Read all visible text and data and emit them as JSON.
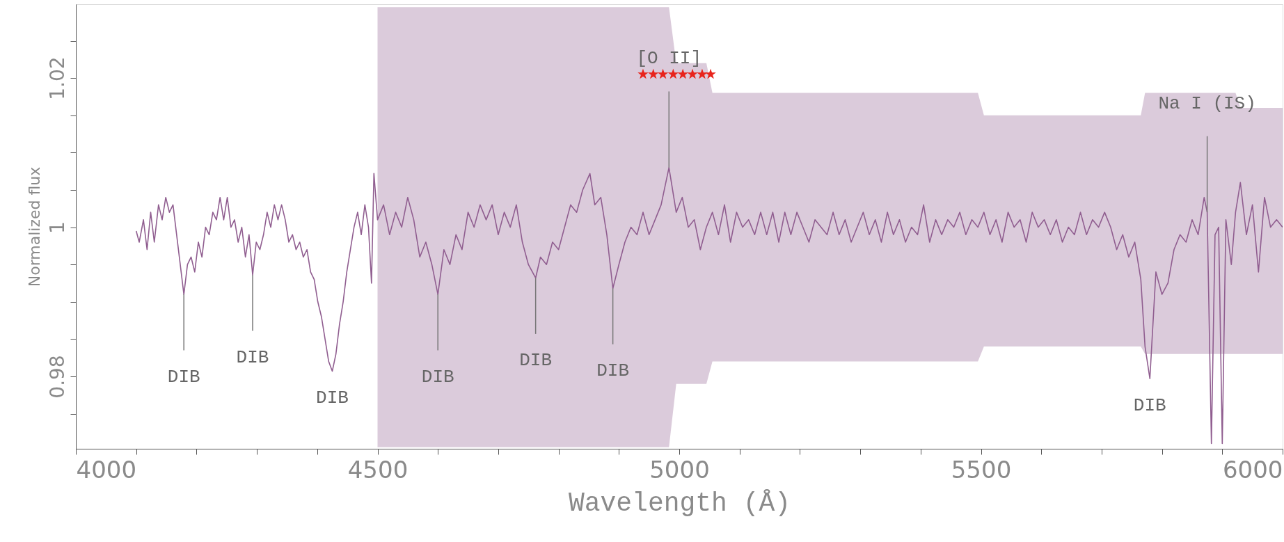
{
  "chart_data": {
    "type": "line",
    "xlabel": "Wavelength (Å)",
    "ylabel": "Normalized flux",
    "xlim": [
      4000,
      6000
    ],
    "ylim": [
      0.9703,
      1.0299
    ],
    "xticks": [
      4000,
      {
        "value": 4100,
        "label": null
      },
      {
        "value": 4200,
        "label": null
      },
      {
        "value": 4300,
        "label": null
      },
      {
        "value": 4400,
        "label": null
      },
      4500,
      {
        "value": 4600,
        "label": null
      },
      {
        "value": 4700,
        "label": null
      },
      {
        "value": 4800,
        "label": null
      },
      {
        "value": 4900,
        "label": null
      },
      5000,
      {
        "value": 5100,
        "label": null
      },
      {
        "value": 5200,
        "label": null
      },
      {
        "value": 5300,
        "label": null
      },
      {
        "value": 5400,
        "label": null
      },
      5500,
      {
        "value": 5600,
        "label": null
      },
      {
        "value": 5700,
        "label": null
      },
      {
        "value": 5800,
        "label": null
      },
      {
        "value": 5900,
        "label": null
      },
      6000
    ],
    "yticks": [
      {
        "value": 0.975,
        "label": null
      },
      0.98,
      {
        "value": 0.985,
        "label": null
      },
      {
        "value": 0.99,
        "label": null
      },
      {
        "value": 0.995,
        "label": null
      },
      1,
      {
        "value": 1.005,
        "label": null
      },
      {
        "value": 1.01,
        "label": null
      },
      {
        "value": 1.015,
        "label": null
      },
      1.02,
      {
        "value": 1.025,
        "label": null
      }
    ],
    "series": [
      {
        "color": "#905e90",
        "x": [
          4100,
          4105,
          4112,
          4118,
          4124,
          4130,
          4137,
          4143,
          4149,
          4155,
          4161,
          4167,
          4173,
          4179,
          4185,
          4191,
          4197,
          4203,
          4209,
          4215,
          4221,
          4227,
          4233,
          4239,
          4245,
          4251,
          4257,
          4263,
          4269,
          4275,
          4281,
          4287,
          4293,
          4299,
          4305,
          4311,
          4317,
          4323,
          4329,
          4335,
          4341,
          4347,
          4353,
          4359,
          4365,
          4371,
          4377,
          4383,
          4389,
          4395,
          4401,
          4407,
          4413,
          4419,
          4425,
          4431,
          4437,
          4443,
          4449,
          4455,
          4461,
          4467,
          4473,
          4479,
          4485,
          4490,
          4494,
          4500,
          4510,
          4520,
          4530,
          4540,
          4550,
          4560,
          4570,
          4580,
          4590,
          4600,
          4610,
          4620,
          4630,
          4640,
          4650,
          4660,
          4670,
          4680,
          4690,
          4700,
          4710,
          4720,
          4730,
          4740,
          4750,
          4762,
          4770,
          4780,
          4790,
          4800,
          4810,
          4820,
          4830,
          4840,
          4852,
          4860,
          4870,
          4880,
          4890,
          4900,
          4910,
          4920,
          4930,
          4940,
          4950,
          4960,
          4970,
          4983,
          4995,
          5005,
          5015,
          5025,
          5035,
          5045,
          5055,
          5065,
          5075,
          5085,
          5095,
          5105,
          5115,
          5125,
          5135,
          5145,
          5155,
          5165,
          5175,
          5185,
          5195,
          5205,
          5215,
          5225,
          5235,
          5245,
          5255,
          5265,
          5275,
          5285,
          5295,
          5305,
          5315,
          5325,
          5335,
          5345,
          5355,
          5365,
          5375,
          5385,
          5395,
          5405,
          5415,
          5425,
          5435,
          5445,
          5455,
          5465,
          5475,
          5485,
          5495,
          5505,
          5515,
          5525,
          5535,
          5545,
          5555,
          5565,
          5575,
          5585,
          5595,
          5605,
          5615,
          5625,
          5635,
          5645,
          5655,
          5665,
          5675,
          5685,
          5695,
          5705,
          5715,
          5725,
          5735,
          5745,
          5755,
          5765,
          5772,
          5780,
          5790,
          5800,
          5810,
          5820,
          5830,
          5840,
          5850,
          5860,
          5870,
          5875,
          5882,
          5888,
          5894,
          5900,
          5906,
          5915,
          5922,
          5930,
          5940,
          5950,
          5960,
          5970,
          5980,
          5990,
          6000
        ],
        "values": [
          0.9995,
          0.998,
          1.001,
          0.997,
          1.002,
          0.998,
          1.003,
          1.001,
          1.004,
          1.002,
          1.003,
          0.999,
          0.995,
          0.991,
          0.995,
          0.996,
          0.994,
          0.998,
          0.996,
          1.0,
          0.999,
          1.002,
          1.001,
          1.004,
          1.001,
          1.004,
          1.0,
          1.001,
          0.998,
          1.0,
          0.996,
          0.999,
          0.9936,
          0.998,
          0.997,
          0.999,
          1.002,
          1.0,
          1.003,
          1.001,
          1.003,
          1.001,
          0.998,
          0.999,
          0.997,
          0.998,
          0.996,
          0.997,
          0.994,
          0.993,
          0.99,
          0.988,
          0.985,
          0.982,
          0.9807,
          0.983,
          0.987,
          0.99,
          0.994,
          0.997,
          1.0,
          1.002,
          0.999,
          1.003,
          1.0,
          0.9925,
          1.0072,
          1.001,
          1.003,
          0.999,
          1.002,
          1.0,
          1.004,
          1.001,
          0.996,
          0.998,
          0.995,
          0.991,
          0.997,
          0.995,
          0.999,
          0.997,
          1.002,
          1.0,
          1.003,
          1.001,
          1.003,
          0.999,
          1.002,
          1.0,
          1.003,
          0.998,
          0.995,
          0.9932,
          0.996,
          0.995,
          0.998,
          0.997,
          1.0,
          1.003,
          1.002,
          1.005,
          1.0072,
          1.003,
          1.004,
          0.999,
          0.9918,
          0.995,
          0.998,
          1.0,
          0.999,
          1.002,
          0.999,
          1.001,
          1.003,
          1.008,
          1.002,
          1.004,
          1.0,
          1.001,
          0.997,
          1.0,
          1.002,
          0.999,
          1.003,
          0.998,
          1.002,
          1.0,
          1.001,
          0.999,
          1.002,
          0.999,
          1.002,
          0.998,
          1.002,
          0.999,
          1.002,
          1.0,
          0.998,
          1.001,
          1.0,
          0.999,
          1.002,
          0.999,
          1.001,
          0.998,
          1.0,
          1.002,
          0.999,
          1.001,
          0.998,
          1.002,
          0.999,
          1.001,
          0.998,
          1.0,
          0.999,
          1.003,
          0.998,
          1.001,
          0.999,
          1.001,
          1.0,
          1.002,
          0.999,
          1.001,
          1.0,
          1.002,
          0.999,
          1.001,
          0.998,
          1.002,
          1.0,
          1.001,
          0.998,
          1.002,
          1.0,
          1.001,
          0.999,
          1.001,
          0.998,
          1.0,
          0.999,
          1.002,
          0.999,
          1.001,
          1.0,
          1.002,
          1.0,
          0.997,
          0.999,
          0.996,
          0.998,
          0.993,
          0.984,
          0.9797,
          0.994,
          0.991,
          0.9925,
          0.997,
          0.999,
          0.998,
          1.001,
          0.999,
          1.004,
          1.002,
          0.971,
          0.999,
          1.0,
          0.971,
          1.001,
          0.995,
          1.002,
          1.006,
          0.999,
          1.003,
          0.994,
          1.004,
          1.0,
          1.001,
          1.0
        ],
        "lower": [
          null,
          null,
          null,
          null,
          null,
          null,
          null,
          null,
          null,
          null,
          null,
          null,
          null,
          null,
          null,
          null,
          null,
          null,
          null,
          null,
          null,
          null,
          null,
          null,
          null,
          null,
          null,
          null,
          null,
          null,
          null,
          null,
          null,
          null,
          null,
          null,
          null,
          null,
          null,
          null,
          null,
          null,
          null,
          null,
          null,
          null,
          null,
          null,
          null,
          null,
          null,
          null,
          null,
          null,
          null,
          null,
          null,
          null,
          null,
          null,
          null,
          null,
          null,
          null,
          null,
          null,
          null,
          0.9705,
          0.9705,
          0.9705,
          0.9705,
          0.9705,
          0.9705,
          0.9705,
          0.9705,
          0.9705,
          0.9705,
          0.9705,
          0.9705,
          0.9705,
          0.9705,
          0.9705,
          0.9705,
          0.9705,
          0.9705,
          0.9705,
          0.9705,
          0.9705,
          0.9705,
          0.9705,
          0.9705,
          0.9705,
          0.9705,
          0.9705,
          0.9705,
          0.9705,
          0.9705,
          0.9705,
          0.9705,
          0.9705,
          0.9705,
          0.9705,
          0.9705,
          0.9705,
          0.9705,
          0.9705,
          0.9705,
          0.9705,
          0.9705,
          0.9705,
          0.9705,
          0.9705,
          0.9705,
          0.9705,
          0.9705,
          0.9705,
          0.979,
          0.979,
          0.979,
          0.979,
          0.979,
          0.979,
          0.982,
          0.982,
          0.982,
          0.982,
          0.982,
          0.982,
          0.982,
          0.982,
          0.982,
          0.982,
          0.982,
          0.982,
          0.982,
          0.982,
          0.982,
          0.982,
          0.982,
          0.982,
          0.982,
          0.982,
          0.982,
          0.982,
          0.982,
          0.982,
          0.982,
          0.982,
          0.982,
          0.982,
          0.982,
          0.982,
          0.982,
          0.982,
          0.982,
          0.982,
          0.982,
          0.982,
          0.982,
          0.982,
          0.982,
          0.982,
          0.982,
          0.982,
          0.982,
          0.982,
          0.982,
          0.984,
          0.984,
          0.984,
          0.984,
          0.984,
          0.984,
          0.984,
          0.984,
          0.984,
          0.984,
          0.984,
          0.984,
          0.984,
          0.984,
          0.984,
          0.984,
          0.984,
          0.984,
          0.984,
          0.984,
          0.984,
          0.984,
          0.984,
          0.984,
          0.984,
          0.984,
          0.984,
          0.983,
          0.983,
          0.983,
          0.983,
          0.983,
          0.983,
          0.983,
          0.983,
          0.983,
          0.983,
          0.983,
          0.983,
          0.983,
          0.983,
          0.983,
          0.983,
          0.983,
          0.983,
          0.983,
          0.983,
          0.983,
          0.983,
          0.983,
          0.983,
          0.983,
          0.983,
          0.983
        ],
        "upper": [
          null,
          null,
          null,
          null,
          null,
          null,
          null,
          null,
          null,
          null,
          null,
          null,
          null,
          null,
          null,
          null,
          null,
          null,
          null,
          null,
          null,
          null,
          null,
          null,
          null,
          null,
          null,
          null,
          null,
          null,
          null,
          null,
          null,
          null,
          null,
          null,
          null,
          null,
          null,
          null,
          null,
          null,
          null,
          null,
          null,
          null,
          null,
          null,
          null,
          null,
          null,
          null,
          null,
          null,
          null,
          null,
          null,
          null,
          null,
          null,
          null,
          null,
          null,
          null,
          null,
          null,
          null,
          1.0295,
          1.0295,
          1.0295,
          1.0295,
          1.0295,
          1.0295,
          1.0295,
          1.0295,
          1.0295,
          1.0295,
          1.0295,
          1.0295,
          1.0295,
          1.0295,
          1.0295,
          1.0295,
          1.0295,
          1.0295,
          1.0295,
          1.0295,
          1.0295,
          1.0295,
          1.0295,
          1.0295,
          1.0295,
          1.0295,
          1.0295,
          1.0295,
          1.0295,
          1.0295,
          1.0295,
          1.0295,
          1.0295,
          1.0295,
          1.0295,
          1.0295,
          1.0295,
          1.0295,
          1.0295,
          1.0295,
          1.0295,
          1.0295,
          1.0295,
          1.0295,
          1.0295,
          1.0295,
          1.0295,
          1.0295,
          1.0295,
          1.022,
          1.022,
          1.022,
          1.022,
          1.022,
          1.022,
          1.018,
          1.018,
          1.018,
          1.018,
          1.018,
          1.018,
          1.018,
          1.018,
          1.018,
          1.018,
          1.018,
          1.018,
          1.018,
          1.018,
          1.018,
          1.018,
          1.018,
          1.018,
          1.018,
          1.018,
          1.018,
          1.018,
          1.018,
          1.018,
          1.018,
          1.018,
          1.018,
          1.018,
          1.018,
          1.018,
          1.018,
          1.018,
          1.018,
          1.018,
          1.018,
          1.018,
          1.018,
          1.018,
          1.018,
          1.018,
          1.018,
          1.018,
          1.018,
          1.018,
          1.018,
          1.015,
          1.015,
          1.015,
          1.015,
          1.015,
          1.015,
          1.015,
          1.015,
          1.015,
          1.015,
          1.015,
          1.015,
          1.015,
          1.015,
          1.015,
          1.015,
          1.015,
          1.015,
          1.015,
          1.015,
          1.015,
          1.015,
          1.015,
          1.015,
          1.015,
          1.015,
          1.015,
          1.018,
          1.018,
          1.018,
          1.018,
          1.018,
          1.018,
          1.018,
          1.018,
          1.018,
          1.018,
          1.018,
          1.018,
          1.018,
          1.018,
          1.018,
          1.018,
          1.018,
          1.018,
          1.018,
          1.016,
          1.016,
          1.016,
          1.016,
          1.016,
          1.016,
          1.016,
          1.016
        ]
      },
      {
        "type": "scatter",
        "marker": "star",
        "color": "#e8241c",
        "x": [
          4940,
          4957,
          4973,
          4990,
          5006,
          5022,
          5038,
          5052
        ],
        "values": [
          1.0205,
          1.0205,
          1.0205,
          1.0205,
          1.0205,
          1.0205,
          1.0205,
          1.0205
        ]
      }
    ],
    "annotations": [
      {
        "text": "DIB",
        "x": 4179,
        "y": 0.991
      },
      {
        "text": "DIB",
        "x": 4293,
        "y": 0.9936
      },
      {
        "text": "DIB",
        "x": 4425,
        "y": 0.9807
      },
      {
        "text": "DIB",
        "x": 4600,
        "y": 0.991
      },
      {
        "text": "DIB",
        "x": 4762,
        "y": 0.9932
      },
      {
        "text": "DIB",
        "x": 4890,
        "y": 0.9918
      },
      {
        "text": "DIB",
        "x": 5780,
        "y": 0.9797
      },
      {
        "text": "[O II]",
        "x": 4983,
        "y": 1.008
      },
      {
        "text": "Na I (IS)",
        "x": 5875,
        "y": 1.002
      }
    ]
  }
}
